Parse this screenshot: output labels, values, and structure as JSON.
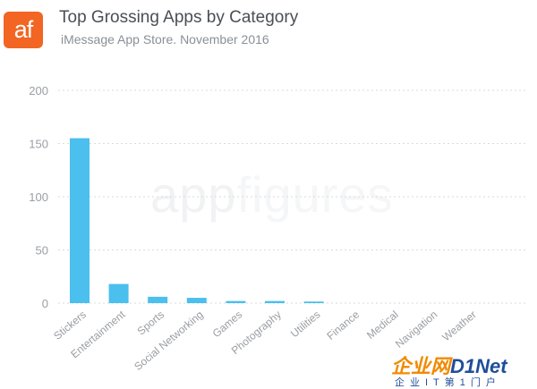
{
  "logo": {
    "text": "af",
    "color": "#f26522"
  },
  "header": {
    "title": "Top Grossing Apps by Category",
    "subtitle": "iMessage App Store. November 2016"
  },
  "watermark": {
    "part1": "app",
    "part2": "figures"
  },
  "site_badge": {
    "brand_left": "企业网",
    "brand_right": "D1Net",
    "tagline": "企业IT第1门户"
  },
  "chart_data": {
    "type": "bar",
    "categories": [
      "Stickers",
      "Entertainment",
      "Sports",
      "Social Networking",
      "Games",
      "Photography",
      "Utilities",
      "Finance",
      "Medical",
      "Navigation",
      "Weather"
    ],
    "values": [
      155,
      18,
      6,
      5,
      2,
      2,
      1.5,
      0,
      0,
      0,
      0
    ],
    "yticks": [
      0,
      50,
      100,
      150,
      200
    ],
    "ylim": [
      0,
      200
    ],
    "bar_color": "#4bbfee",
    "grid": true
  }
}
